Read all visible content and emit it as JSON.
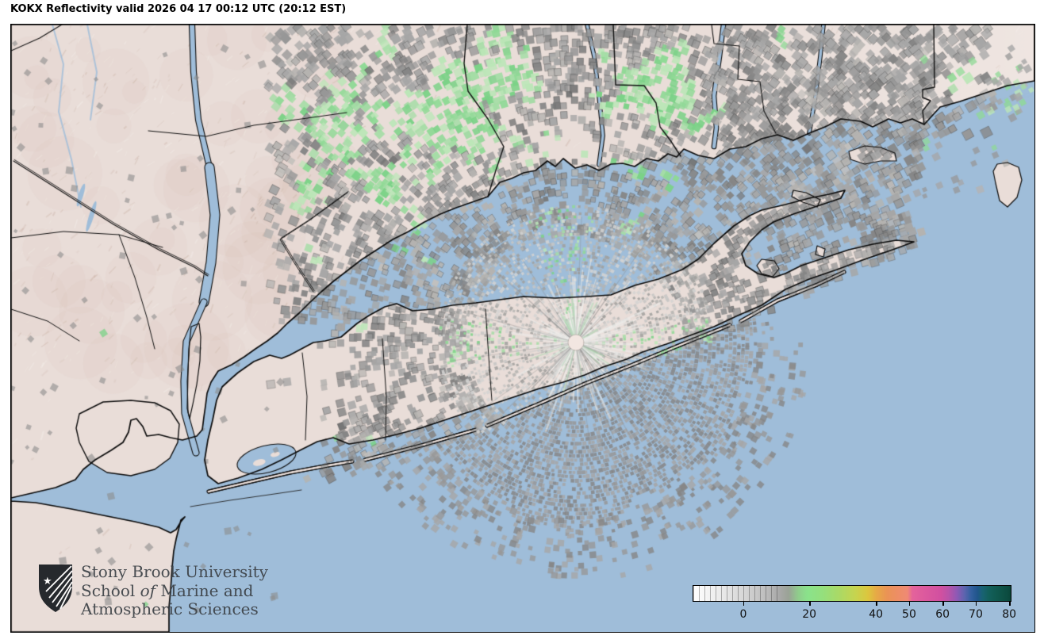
{
  "title": "KOKX Reflectivity valid 2026 04 17 00:12 UTC (20:12 EST)",
  "logo": {
    "line1": "Stony Brook University",
    "line2_pre": "School ",
    "line2_italic": "of",
    "line2_post": " Marine and",
    "line3": "Atmospheric Sciences",
    "shield_icon": "stony-brook-shield",
    "star_glyph": "★"
  },
  "colorbar": {
    "ticks": [
      {
        "label": "0",
        "pct": 15.9
      },
      {
        "label": "20",
        "pct": 36.6
      },
      {
        "label": "40",
        "pct": 57.5
      },
      {
        "label": "50",
        "pct": 67.9
      },
      {
        "label": "60",
        "pct": 78.4
      },
      {
        "label": "70",
        "pct": 88.8
      },
      {
        "label": "80",
        "pct": 99.3
      }
    ],
    "gradient": [
      [
        0,
        "#ffffff"
      ],
      [
        8,
        "#ececec"
      ],
      [
        16,
        "#d6d6d6"
      ],
      [
        22,
        "#c0c0c0"
      ],
      [
        27,
        "#a9a9a9"
      ],
      [
        30,
        "#9aa296"
      ],
      [
        33,
        "#90cc8c"
      ],
      [
        36,
        "#8ae28b"
      ],
      [
        41,
        "#95df7c"
      ],
      [
        46,
        "#abd965"
      ],
      [
        51,
        "#c6d44f"
      ],
      [
        55,
        "#dcc63e"
      ],
      [
        57.5,
        "#e6ab45"
      ],
      [
        61,
        "#ea9355"
      ],
      [
        65,
        "#ee8d68"
      ],
      [
        67.5,
        "#ef8a74"
      ],
      [
        69,
        "#e4639b"
      ],
      [
        73,
        "#dc599e"
      ],
      [
        78,
        "#d150a0"
      ],
      [
        80.5,
        "#b853a8"
      ],
      [
        83,
        "#8f59b5"
      ],
      [
        85.5,
        "#5b64ae"
      ],
      [
        87.5,
        "#33609f"
      ],
      [
        89.5,
        "#20558b"
      ],
      [
        91,
        "#196274"
      ],
      [
        93,
        "#13605c"
      ],
      [
        96,
        "#0f574c"
      ],
      [
        99,
        "#0c4c40"
      ],
      [
        100,
        "#0a4639"
      ]
    ]
  },
  "map": {
    "station": "KOKX",
    "colors": {
      "water": "#9fbdd9",
      "land": "#e9ddd8",
      "coast": "#0b0b0b",
      "radar_dot": "#f2e6e1",
      "echo_grays": [
        "#767676",
        "#868686",
        "#979797",
        "#a6a6a6",
        "#b5b3b0",
        "#c3c0bc"
      ],
      "echo_greens": [
        "#7bd287",
        "#8fd995",
        "#a5dda6",
        "#bce6b8"
      ],
      "ring_grays": [
        "#d4d4d2",
        "#c6c6c4",
        "#b4b4b2",
        "#a0a09e"
      ],
      "spoke_light": "#f0f0ee",
      "spoke_green": "#aad7af"
    }
  }
}
